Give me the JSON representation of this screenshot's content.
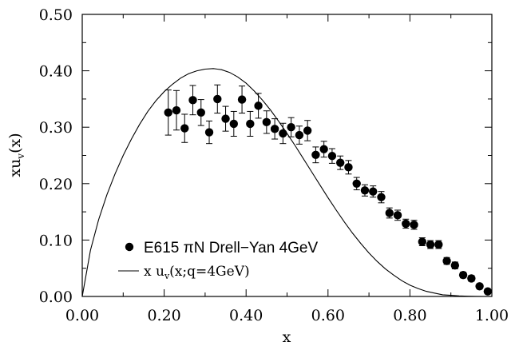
{
  "chart_data": {
    "type": "scatter",
    "xlabel": "x",
    "ylabel": {
      "base": "xu",
      "sub": "v",
      "suffix": "(x)"
    },
    "xlim": [
      0.0,
      1.0
    ],
    "ylim": [
      0.0,
      0.5
    ],
    "xticks": [
      "0.00",
      "0.20",
      "0.40",
      "0.60",
      "0.80",
      "1.00"
    ],
    "yticks": [
      "0.00",
      "0.10",
      "0.20",
      "0.30",
      "0.40",
      "0.50"
    ],
    "xtick_values": [
      0.0,
      0.2,
      0.4,
      0.6,
      0.8,
      1.0
    ],
    "ytick_values": [
      0.0,
      0.1,
      0.2,
      0.3,
      0.4,
      0.5
    ],
    "minor_ticks": true,
    "grid": false,
    "legend_position": "bottom-left",
    "series": [
      {
        "name": "E615 πN Drell−Yan 4GeV",
        "kind": "points-with-error-bars",
        "marker": "filled-circle",
        "color": "#000000",
        "x": [
          0.21,
          0.23,
          0.25,
          0.27,
          0.29,
          0.31,
          0.33,
          0.35,
          0.37,
          0.39,
          0.41,
          0.43,
          0.45,
          0.47,
          0.49,
          0.51,
          0.53,
          0.55,
          0.57,
          0.59,
          0.61,
          0.63,
          0.65,
          0.67,
          0.69,
          0.71,
          0.73,
          0.75,
          0.77,
          0.79,
          0.81,
          0.83,
          0.85,
          0.87,
          0.89,
          0.91,
          0.93,
          0.95,
          0.97,
          0.99
        ],
        "y": [
          0.326,
          0.33,
          0.298,
          0.348,
          0.326,
          0.291,
          0.35,
          0.315,
          0.306,
          0.349,
          0.306,
          0.338,
          0.309,
          0.297,
          0.289,
          0.3,
          0.286,
          0.294,
          0.251,
          0.261,
          0.249,
          0.237,
          0.229,
          0.2,
          0.188,
          0.186,
          0.176,
          0.148,
          0.144,
          0.129,
          0.127,
          0.097,
          0.092,
          0.092,
          0.063,
          0.055,
          0.038,
          0.032,
          0.018,
          0.009
        ],
        "err": [
          0.04,
          0.035,
          0.025,
          0.026,
          0.023,
          0.02,
          0.025,
          0.022,
          0.022,
          0.024,
          0.022,
          0.022,
          0.02,
          0.018,
          0.018,
          0.017,
          0.016,
          0.018,
          0.014,
          0.014,
          0.013,
          0.012,
          0.012,
          0.011,
          0.01,
          0.01,
          0.01,
          0.009,
          0.009,
          0.008,
          0.008,
          0.007,
          0.007,
          0.007,
          0.006,
          0.006,
          0.005,
          0.005,
          0.004,
          0.004
        ]
      },
      {
        "name": "x u_v(x;q=4GeV)",
        "kind": "line",
        "color": "#000000",
        "x": [
          0.0,
          0.02,
          0.04,
          0.06,
          0.08,
          0.1,
          0.12,
          0.14,
          0.16,
          0.18,
          0.2,
          0.22,
          0.24,
          0.26,
          0.28,
          0.3,
          0.32,
          0.33,
          0.34,
          0.36,
          0.38,
          0.4,
          0.42,
          0.44,
          0.46,
          0.48,
          0.5,
          0.52,
          0.54,
          0.56,
          0.58,
          0.6,
          0.62,
          0.64,
          0.66,
          0.68,
          0.7,
          0.72,
          0.74,
          0.76,
          0.78,
          0.8,
          0.82,
          0.84,
          0.86,
          0.88,
          0.9,
          0.92,
          0.94,
          0.96,
          0.98,
          1.0
        ],
        "y": [
          0.0,
          0.082,
          0.136,
          0.18,
          0.217,
          0.25,
          0.279,
          0.305,
          0.328,
          0.347,
          0.363,
          0.376,
          0.387,
          0.395,
          0.4,
          0.403,
          0.404,
          0.403,
          0.402,
          0.397,
          0.389,
          0.378,
          0.364,
          0.348,
          0.33,
          0.31,
          0.289,
          0.267,
          0.244,
          0.221,
          0.198,
          0.175,
          0.153,
          0.132,
          0.112,
          0.094,
          0.077,
          0.062,
          0.049,
          0.038,
          0.028,
          0.02,
          0.014,
          0.009,
          0.006,
          0.003,
          0.002,
          0.001,
          0.0004,
          0.0001,
          0.0,
          0.0
        ]
      }
    ],
    "legend": {
      "points": {
        "text": "E615 πN Drell−Yan 4GeV"
      },
      "line": {
        "prefix": "x u",
        "sub": "v",
        "suffix": "(x;q=4GeV)"
      }
    }
  }
}
